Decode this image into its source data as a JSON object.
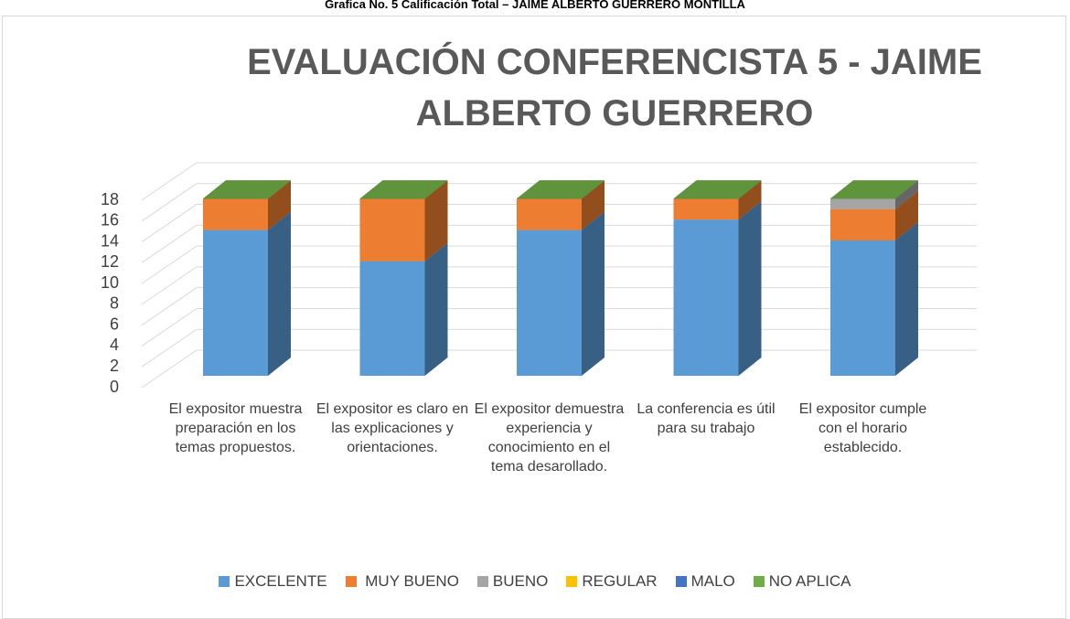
{
  "chart_data": {
    "type": "bar3d_stacked",
    "caption": "Grafica No. 5 Calificación Total – JAIME ALBERTO GUERRERO MONTILLA",
    "title": "EVALUACIÓN CONFERENCISTA  5 - JAIME ALBERTO GUERRERO",
    "categories": [
      "El expositor muestra preparación en los temas propuestos.",
      "El  expositor es claro en las explicaciones y orientaciones.",
      "El expositor demuestra experiencia y conocimiento en el tema desarollado.",
      "La conferencia es útil para su trabajo",
      "El expositor cumple con el horario establecido."
    ],
    "series": [
      {
        "name": "EXCELENTE",
        "color": "#5b9bd5",
        "values": [
          14,
          11,
          14,
          15,
          13
        ]
      },
      {
        "name": " MUY BUENO",
        "color": "#ed7d31",
        "values": [
          3,
          6,
          3,
          2,
          3
        ]
      },
      {
        "name": "BUENO",
        "color": "#a5a5a5",
        "values": [
          0,
          0,
          0,
          0,
          1
        ]
      },
      {
        "name": "REGULAR",
        "color": "#ffc000",
        "values": [
          0,
          0,
          0,
          0,
          0
        ]
      },
      {
        "name": "MALO",
        "color": "#4472c4",
        "values": [
          0,
          0,
          0,
          0,
          0
        ]
      },
      {
        "name": "NO APLICA",
        "color": "#70ad47",
        "values": [
          0,
          0,
          0,
          0,
          0
        ]
      }
    ],
    "ylim": [
      0,
      18
    ],
    "yticks": [
      0,
      2,
      4,
      6,
      8,
      10,
      12,
      14,
      16,
      18
    ],
    "grid": true,
    "legend": "bottom"
  }
}
